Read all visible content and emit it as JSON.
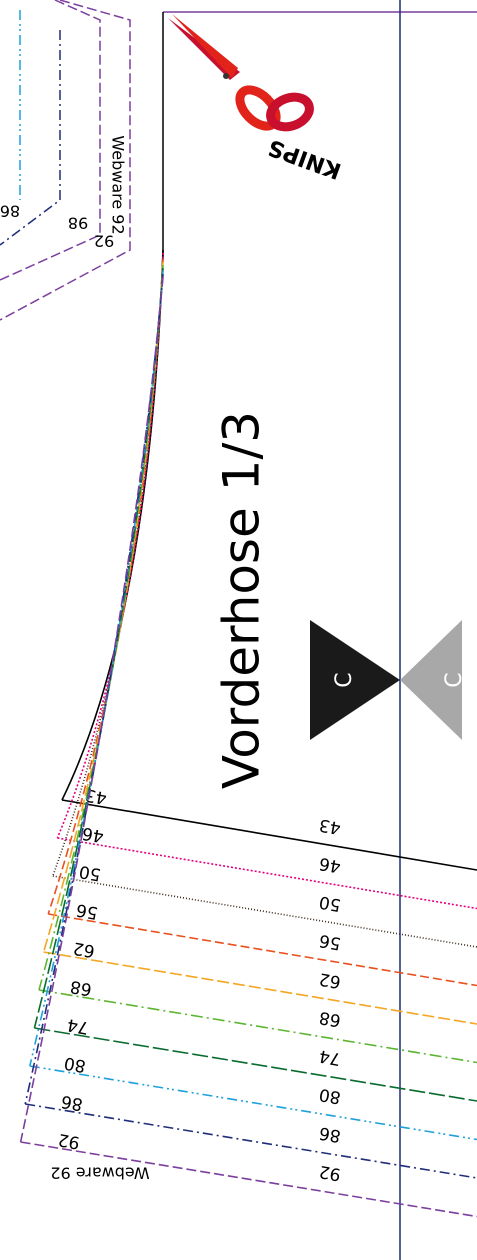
{
  "title": "Vorderhose 1/3",
  "brand": "KNIPS",
  "notches": [
    "C",
    "C"
  ],
  "fabric_label": "Webware 92",
  "fragment_sizes": [
    "86",
    "98",
    "92"
  ],
  "sizes": [
    {
      "label": "43",
      "color": "#000000",
      "dash": ""
    },
    {
      "label": "46",
      "color": "#e6007e",
      "dash": "2 2"
    },
    {
      "label": "50",
      "color": "#3a2a1a",
      "dash": "1 2"
    },
    {
      "label": "56",
      "color": "#e8501e",
      "dash": "9 4"
    },
    {
      "label": "62",
      "color": "#f5a623",
      "dash": "12 4"
    },
    {
      "label": "68",
      "color": "#5cb531",
      "dash": "12 4 2 4"
    },
    {
      "label": "74",
      "color": "#0a6b2e",
      "dash": "16 4"
    },
    {
      "label": "80",
      "color": "#1ea0dc",
      "dash": "10 4 2 3 2 4"
    },
    {
      "label": "86",
      "color": "#1f2d7a",
      "dash": "10 4 2 4"
    },
    {
      "label": "92",
      "color": "#7b3f9e",
      "dash": "10 4"
    }
  ]
}
